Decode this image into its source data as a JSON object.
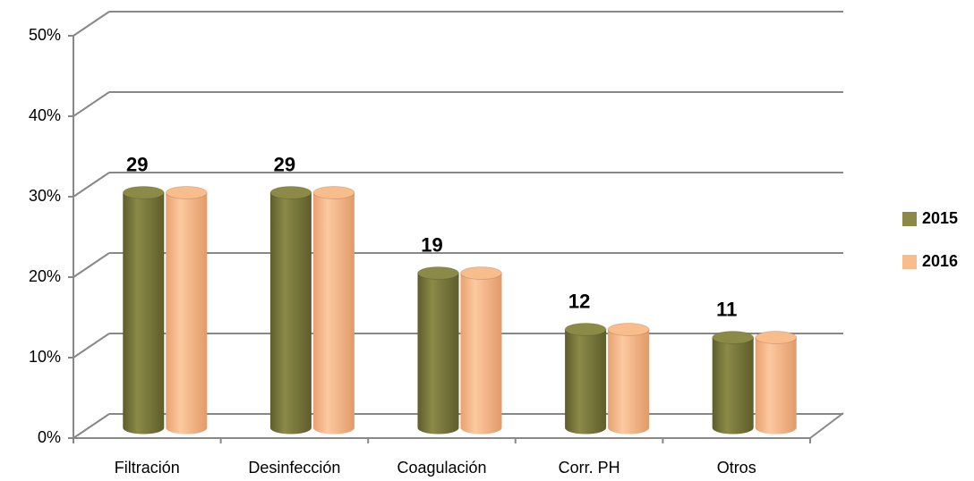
{
  "chart_data": {
    "type": "bar3d",
    "categories": [
      "Filtración",
      "Desinfección",
      "Coagulación",
      "Corr. PH",
      "Otros"
    ],
    "series": [
      {
        "name": "2015",
        "color": "#8b8a47",
        "values": [
          29,
          29,
          19,
          12,
          11
        ]
      },
      {
        "name": "2016",
        "color": "#f9bd8c",
        "values": [
          29,
          29,
          19,
          12,
          11
        ]
      }
    ],
    "ylim": [
      0,
      50
    ],
    "yticks": [
      {
        "value": 0,
        "label": "0%"
      },
      {
        "value": 10,
        "label": "10%"
      },
      {
        "value": 20,
        "label": "20%"
      },
      {
        "value": 30,
        "label": "30%"
      },
      {
        "value": 40,
        "label": "40%"
      },
      {
        "value": 50,
        "label": "50%"
      }
    ],
    "grid": true,
    "legend": "right"
  }
}
